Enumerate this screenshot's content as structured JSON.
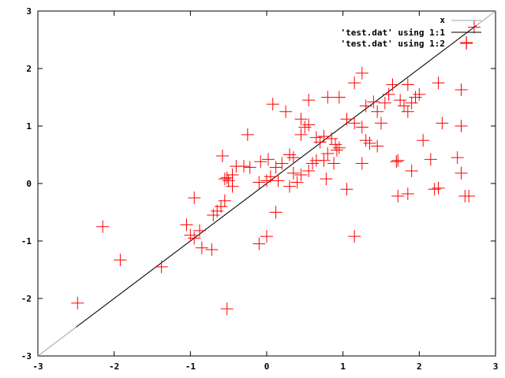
{
  "chart_data": {
    "type": "scatter",
    "title": "",
    "xlabel": "",
    "ylabel": "",
    "xlim": [
      -3,
      3
    ],
    "ylim": [
      -3,
      3
    ],
    "xticks": [
      "-3",
      "-2",
      "-1",
      "0",
      "1",
      "2",
      "3"
    ],
    "yticks": [
      "-3",
      "-2",
      "-1",
      "0",
      "1",
      "2",
      "3"
    ],
    "grid": false,
    "legend_position": "top-right",
    "legend": [
      "x",
      "'test.dat' using 1:1",
      "'test.dat' using 1:2"
    ],
    "series": [
      {
        "name": "x",
        "kind": "line",
        "color": "#a0a0a0",
        "x": [
          -3,
          3
        ],
        "y": [
          -3,
          3
        ]
      },
      {
        "name": "'test.dat' using 1:1",
        "kind": "line",
        "color": "#000000",
        "x": [
          -2.5,
          2.75
        ],
        "y": [
          -2.5,
          2.75
        ]
      },
      {
        "name": "'test.dat' using 1:2",
        "kind": "points",
        "color": "#ff0000",
        "points": [
          [
            2.72,
            2.72
          ],
          [
            2.62,
            2.45
          ],
          [
            2.55,
            1.63
          ],
          [
            2.25,
            1.75
          ],
          [
            1.85,
            1.72
          ],
          [
            1.65,
            1.72
          ],
          [
            1.25,
            1.92
          ],
          [
            1.15,
            1.75
          ],
          [
            0.95,
            1.5
          ],
          [
            0.8,
            1.5
          ],
          [
            0.55,
            1.45
          ],
          [
            0.25,
            1.25
          ],
          [
            0.08,
            1.38
          ],
          [
            1.75,
            1.45
          ],
          [
            1.9,
            1.4
          ],
          [
            1.55,
            1.4
          ],
          [
            1.4,
            1.42
          ],
          [
            1.3,
            1.35
          ],
          [
            1.45,
            1.25
          ],
          [
            1.05,
            1.12
          ],
          [
            1.15,
            1.05
          ],
          [
            1.5,
            1.05
          ],
          [
            1.25,
            0.98
          ],
          [
            1.8,
            1.35
          ],
          [
            1.85,
            1.25
          ],
          [
            1.95,
            1.5
          ],
          [
            2.0,
            1.55
          ],
          [
            1.6,
            1.55
          ],
          [
            2.3,
            1.05
          ],
          [
            2.55,
            1.0
          ],
          [
            0.45,
            1.12
          ],
          [
            0.5,
            0.98
          ],
          [
            0.55,
            1.02
          ],
          [
            0.45,
            0.85
          ],
          [
            0.65,
            0.8
          ],
          [
            0.75,
            0.82
          ],
          [
            0.85,
            0.78
          ],
          [
            0.9,
            0.68
          ],
          [
            0.92,
            0.58
          ],
          [
            0.95,
            0.62
          ],
          [
            0.7,
            0.72
          ],
          [
            0.8,
            0.52
          ],
          [
            0.75,
            0.4
          ],
          [
            0.6,
            0.35
          ],
          [
            0.65,
            0.4
          ],
          [
            0.88,
            0.35
          ],
          [
            0.55,
            0.22
          ],
          [
            0.45,
            0.15
          ],
          [
            0.35,
            0.18
          ],
          [
            0.4,
            0.02
          ],
          [
            0.3,
            0.5
          ],
          [
            0.35,
            0.45
          ],
          [
            0.2,
            0.35
          ],
          [
            0.12,
            0.28
          ],
          [
            0.02,
            0.42
          ],
          [
            -0.08,
            0.38
          ],
          [
            0.05,
            0.12
          ],
          [
            0.0,
            0.05
          ],
          [
            -0.1,
            0.02
          ],
          [
            0.3,
            -0.05
          ],
          [
            0.78,
            0.08
          ],
          [
            1.05,
            -0.1
          ],
          [
            1.25,
            0.35
          ],
          [
            1.3,
            0.75
          ],
          [
            1.35,
            0.7
          ],
          [
            1.45,
            0.65
          ],
          [
            1.7,
            0.38
          ],
          [
            1.72,
            0.4
          ],
          [
            1.9,
            0.22
          ],
          [
            1.72,
            -0.22
          ],
          [
            1.85,
            -0.18
          ],
          [
            2.05,
            0.75
          ],
          [
            2.15,
            0.42
          ],
          [
            2.2,
            -0.1
          ],
          [
            2.25,
            -0.08
          ],
          [
            2.5,
            0.45
          ],
          [
            2.55,
            0.18
          ],
          [
            2.6,
            -0.22
          ],
          [
            2.65,
            -0.22
          ],
          [
            1.15,
            -0.92
          ],
          [
            -0.25,
            0.85
          ],
          [
            -0.3,
            0.3
          ],
          [
            -0.22,
            0.28
          ],
          [
            -0.4,
            0.3
          ],
          [
            -0.45,
            0.15
          ],
          [
            -0.5,
            0.05
          ],
          [
            -0.55,
            0.08
          ],
          [
            -0.58,
            0.48
          ],
          [
            -0.52,
            0.1
          ],
          [
            -0.45,
            -0.05
          ],
          [
            -0.55,
            -0.3
          ],
          [
            -0.6,
            -0.4
          ],
          [
            -0.7,
            -0.55
          ],
          [
            -0.65,
            -0.48
          ],
          [
            -0.95,
            -0.25
          ],
          [
            -1.05,
            -0.72
          ],
          [
            -1.0,
            -0.9
          ],
          [
            -0.95,
            -0.95
          ],
          [
            -0.88,
            -0.82
          ],
          [
            -0.85,
            -1.12
          ],
          [
            -0.72,
            -1.15
          ],
          [
            -0.1,
            -1.05
          ],
          [
            0.0,
            -0.92
          ],
          [
            0.12,
            -0.5
          ],
          [
            -1.38,
            -1.45
          ],
          [
            -1.92,
            -1.33
          ],
          [
            -2.15,
            -0.75
          ],
          [
            -2.48,
            -2.08
          ],
          [
            -0.52,
            -2.18
          ],
          [
            0.15,
            0.05
          ]
        ]
      }
    ]
  }
}
